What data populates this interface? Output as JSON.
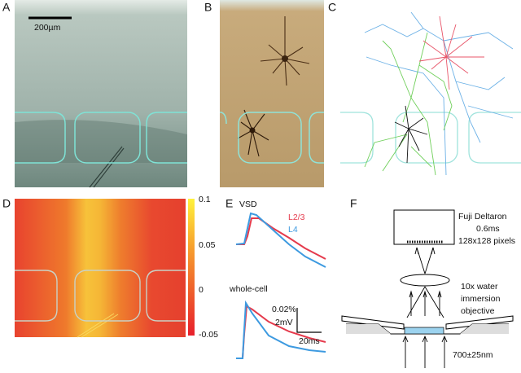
{
  "panels": {
    "a": {
      "label": "A",
      "scale_bar": "200µm"
    },
    "b": {
      "label": "B"
    },
    "c": {
      "label": "C"
    },
    "d": {
      "label": "D",
      "colorbar_ticks": [
        0.1,
        0.05,
        0,
        -0.05
      ]
    },
    "e": {
      "label": "E",
      "vsd_title": "VSD",
      "series": [
        {
          "name": "L2/3",
          "color": "#e53a4c"
        },
        {
          "name": "L4",
          "color": "#3d9ae0"
        }
      ],
      "whole_cell_title": "whole-cell",
      "scale_vsd": "0.02%",
      "scale_mv": "2mV",
      "scale_time": "20ms"
    },
    "f": {
      "label": "F",
      "camera": [
        "Fuji Deltaron",
        "0.6ms",
        "128x128 pixels"
      ],
      "objective": [
        "10x water",
        "immersion",
        "objective"
      ],
      "wavelength": "700±25nm"
    }
  }
}
